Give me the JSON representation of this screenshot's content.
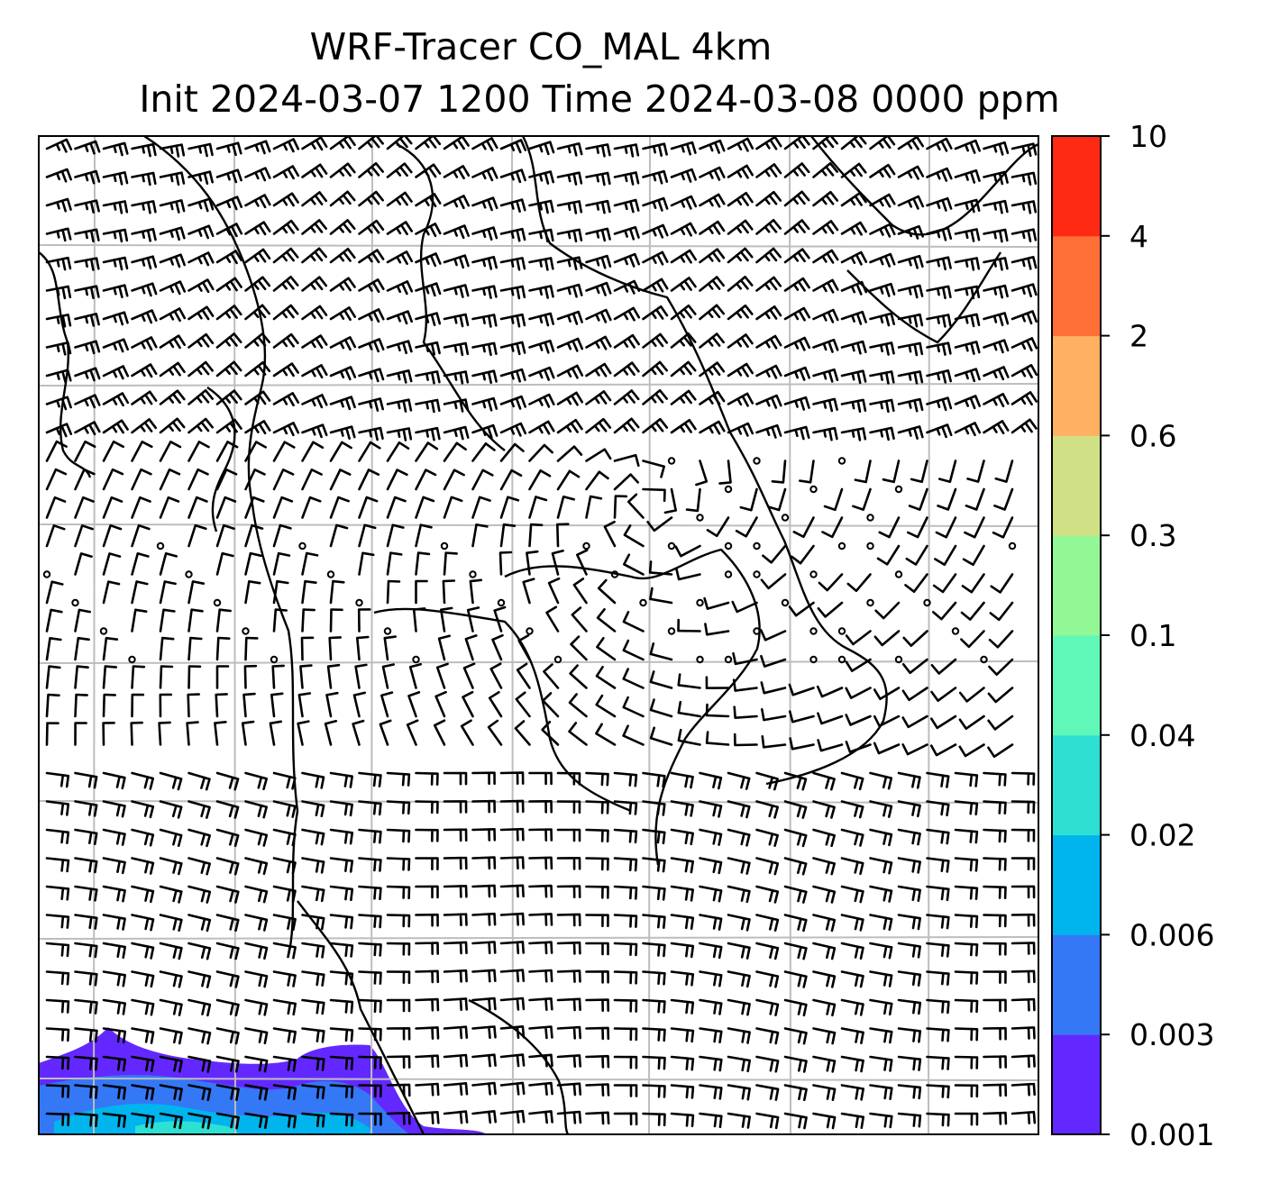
{
  "chart_data": {
    "type": "heatmap",
    "title_line1": "WRF-Tracer CO_MAL 4km",
    "title_line2": "Init 2024-03-07 1200 Time 2024-03-08 0000 ppm",
    "variable": "CO_MAL tracer",
    "units": "ppm",
    "overlay": "wind barbs with coastlines and lat/lon gridlines",
    "grid": true,
    "colorbar": {
      "position": "right",
      "levels": [
        "0.001",
        "0.003",
        "0.006",
        "0.02",
        "0.04",
        "0.1",
        "0.3",
        "0.6",
        "2",
        "4",
        "10"
      ],
      "colors": [
        "#6328ff",
        "#3478f5",
        "#00b4ee",
        "#2ee0d2",
        "#5ff8b8",
        "#92f895",
        "#d0e185",
        "#ffb060",
        "#ff7038",
        "#ff2a14"
      ]
    },
    "shaded_region": {
      "location": "bottom-left of map",
      "max_level_shown": "0.02"
    }
  }
}
